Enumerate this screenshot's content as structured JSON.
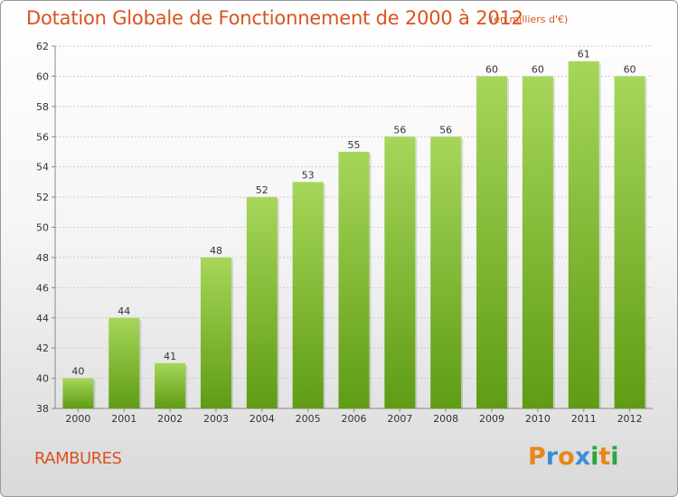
{
  "header": {
    "title": "Dotation Globale de Fonctionnement de 2000 à 2012",
    "unit": "(en milliers d'€)"
  },
  "footer": {
    "commune": "RAMBURES",
    "logo_letters": [
      "P",
      "r",
      "o",
      "x",
      "i",
      "t",
      "i"
    ],
    "logo_colors": [
      "#e8861a",
      "#3a8fd8",
      "#e8861a",
      "#3a8fd8",
      "#2aa63a",
      "#e8861a",
      "#2aa63a"
    ]
  },
  "colors": {
    "bar_light": "#a6d65a",
    "bar_dark": "#5f9c14",
    "grid": "#cccccc",
    "title": "#d9531f"
  },
  "chart_data": {
    "type": "bar",
    "title": "Dotation Globale de Fonctionnement de 2000 à 2012",
    "subtitle": "(en milliers d'€)",
    "xlabel": "",
    "ylabel": "",
    "categories": [
      "2000",
      "2001",
      "2002",
      "2003",
      "2004",
      "2005",
      "2006",
      "2007",
      "2008",
      "2009",
      "2010",
      "2011",
      "2012"
    ],
    "values": [
      40,
      44,
      41,
      48,
      52,
      53,
      55,
      56,
      56,
      60,
      60,
      61,
      60
    ],
    "ylim": [
      38,
      62
    ],
    "yticks": [
      38,
      40,
      42,
      44,
      46,
      48,
      50,
      52,
      54,
      56,
      58,
      60,
      62
    ],
    "grid": true,
    "data_labels": true
  }
}
